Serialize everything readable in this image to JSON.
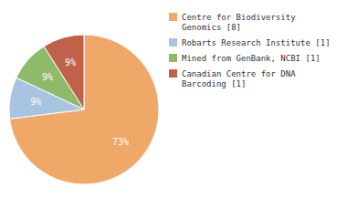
{
  "chart_data": {
    "type": "pie",
    "categories": [
      "Centre for Biodiversity\nGenomics [8]",
      "Robarts Research Institute [1]",
      "Mined from GenBank, NCBI [1]",
      "Canadian Centre for DNA\nBarcoding [1]"
    ],
    "values": [
      73,
      9,
      9,
      9
    ],
    "value_labels": [
      "73%",
      "9%",
      "9%",
      "9%"
    ],
    "data_labels": true,
    "colors": [
      "#f0a868",
      "#a8c4e0",
      "#8fba6a",
      "#c0614a"
    ],
    "legend": "upper right"
  }
}
